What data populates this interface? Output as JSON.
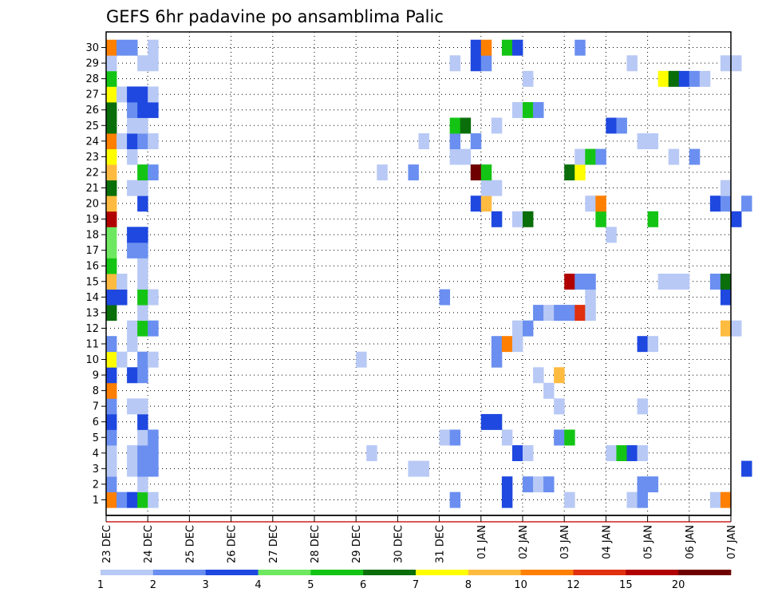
{
  "chart_data": {
    "type": "heatmap",
    "title": "GEFS 6hr padavine po ansamblima Palic",
    "x_tick_labels": [
      "23 DEC",
      "24 DEC",
      "25 DEC",
      "26 DEC",
      "27 DEC",
      "28 DEC",
      "29 DEC",
      "30 DEC",
      "31 DEC",
      "01 JAN",
      "02 JAN",
      "03 JAN",
      "04 JAN",
      "05 JAN",
      "06 JAN",
      "07 JAN"
    ],
    "y_tick_labels": [
      "1",
      "2",
      "3",
      "4",
      "5",
      "6",
      "7",
      "8",
      "9",
      "10",
      "11",
      "12",
      "13",
      "14",
      "15",
      "16",
      "17",
      "18",
      "19",
      "20",
      "21",
      "22",
      "23",
      "24",
      "25",
      "26",
      "27",
      "28",
      "29",
      "30"
    ],
    "xlim": [
      "23 DEC",
      "07 JAN"
    ],
    "ylim": [
      0.5,
      30.5
    ],
    "grid": true,
    "steps_per_day": 4,
    "colorbar": {
      "bounds": [
        "1",
        "2",
        "3",
        "4",
        "5",
        "6",
        "7",
        "8",
        "10",
        "12",
        "15",
        "20"
      ],
      "colors": [
        "#b8c9f5",
        "#6a8ff0",
        "#1f48e0",
        "#6ee860",
        "#14c414",
        "#0a6e0a",
        "#ffff00",
        "#ffbb40",
        "#ff7f00",
        "#e03010",
        "#b00000",
        "#6e0000"
      ]
    },
    "cells": [
      [
        1,
        0,
        "10"
      ],
      [
        1,
        1,
        "2"
      ],
      [
        1,
        2,
        "3"
      ],
      [
        1,
        3,
        "5"
      ],
      [
        1,
        4,
        "1"
      ],
      [
        1,
        33,
        "2"
      ],
      [
        1,
        38,
        "3"
      ],
      [
        1,
        44,
        "1"
      ],
      [
        1,
        50,
        "1"
      ],
      [
        1,
        51,
        "2"
      ],
      [
        1,
        58,
        "1"
      ],
      [
        1,
        59,
        "10"
      ],
      [
        2,
        0,
        "2"
      ],
      [
        2,
        3,
        "1"
      ],
      [
        2,
        38,
        "3"
      ],
      [
        2,
        40,
        "2"
      ],
      [
        2,
        41,
        "1"
      ],
      [
        2,
        42,
        "2"
      ],
      [
        2,
        51,
        "2"
      ],
      [
        2,
        52,
        "2"
      ],
      [
        3,
        0,
        "1"
      ],
      [
        3,
        2,
        "1"
      ],
      [
        3,
        3,
        "2"
      ],
      [
        3,
        4,
        "2"
      ],
      [
        3,
        29,
        "1"
      ],
      [
        3,
        30,
        "1"
      ],
      [
        3,
        61,
        "3"
      ],
      [
        4,
        0,
        "1"
      ],
      [
        4,
        2,
        "1"
      ],
      [
        4,
        3,
        "2"
      ],
      [
        4,
        4,
        "2"
      ],
      [
        4,
        25,
        "1"
      ],
      [
        4,
        39,
        "3"
      ],
      [
        4,
        40,
        "1"
      ],
      [
        4,
        48,
        "1"
      ],
      [
        4,
        49,
        "5"
      ],
      [
        4,
        50,
        "3"
      ],
      [
        4,
        51,
        "1"
      ],
      [
        5,
        0,
        "2"
      ],
      [
        5,
        3,
        "1"
      ],
      [
        5,
        4,
        "2"
      ],
      [
        5,
        32,
        "1"
      ],
      [
        5,
        33,
        "2"
      ],
      [
        5,
        38,
        "1"
      ],
      [
        5,
        43,
        "2"
      ],
      [
        5,
        44,
        "5"
      ],
      [
        6,
        0,
        "3"
      ],
      [
        6,
        3,
        "3"
      ],
      [
        6,
        36,
        "3"
      ],
      [
        6,
        37,
        "3"
      ],
      [
        7,
        0,
        "2"
      ],
      [
        7,
        2,
        "1"
      ],
      [
        7,
        3,
        "1"
      ],
      [
        7,
        43,
        "1"
      ],
      [
        7,
        51,
        "1"
      ],
      [
        8,
        0,
        "10"
      ],
      [
        8,
        42,
        "1"
      ],
      [
        9,
        0,
        "3"
      ],
      [
        9,
        2,
        "3"
      ],
      [
        9,
        3,
        "2"
      ],
      [
        9,
        41,
        "1"
      ],
      [
        9,
        43,
        "8"
      ],
      [
        10,
        0,
        "7"
      ],
      [
        10,
        1,
        "1"
      ],
      [
        10,
        3,
        "2"
      ],
      [
        10,
        4,
        "1"
      ],
      [
        10,
        24,
        "1"
      ],
      [
        10,
        37,
        "2"
      ],
      [
        11,
        0,
        "2"
      ],
      [
        11,
        2,
        "1"
      ],
      [
        11,
        37,
        "2"
      ],
      [
        11,
        38,
        "10"
      ],
      [
        11,
        39,
        "1"
      ],
      [
        11,
        51,
        "3"
      ],
      [
        11,
        52,
        "1"
      ],
      [
        12,
        2,
        "1"
      ],
      [
        12,
        3,
        "5"
      ],
      [
        12,
        4,
        "2"
      ],
      [
        12,
        39,
        "1"
      ],
      [
        12,
        40,
        "2"
      ],
      [
        12,
        59,
        "8"
      ],
      [
        12,
        60,
        "1"
      ],
      [
        13,
        0,
        "6"
      ],
      [
        13,
        3,
        "1"
      ],
      [
        13,
        41,
        "2"
      ],
      [
        13,
        42,
        "1"
      ],
      [
        13,
        43,
        "2"
      ],
      [
        13,
        44,
        "2"
      ],
      [
        13,
        45,
        "12"
      ],
      [
        13,
        46,
        "1"
      ],
      [
        14,
        0,
        "3"
      ],
      [
        14,
        1,
        "3"
      ],
      [
        14,
        3,
        "5"
      ],
      [
        14,
        4,
        "1"
      ],
      [
        14,
        32,
        "2"
      ],
      [
        14,
        46,
        "1"
      ],
      [
        14,
        59,
        "3"
      ],
      [
        15,
        0,
        "8"
      ],
      [
        15,
        1,
        "1"
      ],
      [
        15,
        3,
        "1"
      ],
      [
        15,
        44,
        "15"
      ],
      [
        15,
        45,
        "2"
      ],
      [
        15,
        46,
        "2"
      ],
      [
        15,
        53,
        "1"
      ],
      [
        15,
        54,
        "1"
      ],
      [
        15,
        55,
        "1"
      ],
      [
        15,
        58,
        "2"
      ],
      [
        15,
        59,
        "6"
      ],
      [
        16,
        0,
        "5"
      ],
      [
        16,
        3,
        "1"
      ],
      [
        17,
        0,
        "4"
      ],
      [
        17,
        2,
        "2"
      ],
      [
        17,
        3,
        "2"
      ],
      [
        18,
        0,
        "4"
      ],
      [
        18,
        2,
        "3"
      ],
      [
        18,
        3,
        "3"
      ],
      [
        18,
        48,
        "1"
      ],
      [
        19,
        0,
        "15"
      ],
      [
        19,
        37,
        "3"
      ],
      [
        19,
        39,
        "1"
      ],
      [
        19,
        40,
        "6"
      ],
      [
        19,
        47,
        "5"
      ],
      [
        19,
        52,
        "5"
      ],
      [
        19,
        60,
        "3"
      ],
      [
        20,
        0,
        "8"
      ],
      [
        20,
        3,
        "3"
      ],
      [
        20,
        35,
        "3"
      ],
      [
        20,
        36,
        "8"
      ],
      [
        20,
        46,
        "1"
      ],
      [
        20,
        47,
        "10"
      ],
      [
        20,
        58,
        "3"
      ],
      [
        20,
        59,
        "2"
      ],
      [
        20,
        61,
        "2"
      ],
      [
        21,
        0,
        "6"
      ],
      [
        21,
        2,
        "1"
      ],
      [
        21,
        3,
        "1"
      ],
      [
        21,
        36,
        "1"
      ],
      [
        21,
        37,
        "1"
      ],
      [
        21,
        59,
        "1"
      ],
      [
        22,
        0,
        "8"
      ],
      [
        22,
        3,
        "5"
      ],
      [
        22,
        4,
        "2"
      ],
      [
        22,
        26,
        "1"
      ],
      [
        22,
        29,
        "2"
      ],
      [
        22,
        35,
        "20"
      ],
      [
        22,
        36,
        "5"
      ],
      [
        22,
        44,
        "6"
      ],
      [
        22,
        45,
        "7"
      ],
      [
        23,
        0,
        "7"
      ],
      [
        23,
        2,
        "1"
      ],
      [
        23,
        33,
        "1"
      ],
      [
        23,
        34,
        "1"
      ],
      [
        23,
        45,
        "1"
      ],
      [
        23,
        46,
        "5"
      ],
      [
        23,
        47,
        "2"
      ],
      [
        23,
        54,
        "1"
      ],
      [
        23,
        56,
        "2"
      ],
      [
        24,
        0,
        "10"
      ],
      [
        24,
        1,
        "1"
      ],
      [
        24,
        2,
        "3"
      ],
      [
        24,
        3,
        "2"
      ],
      [
        24,
        4,
        "1"
      ],
      [
        24,
        30,
        "1"
      ],
      [
        24,
        33,
        "2"
      ],
      [
        24,
        35,
        "2"
      ],
      [
        24,
        51,
        "1"
      ],
      [
        24,
        52,
        "1"
      ],
      [
        25,
        0,
        "6"
      ],
      [
        25,
        2,
        "1"
      ],
      [
        25,
        3,
        "1"
      ],
      [
        25,
        33,
        "5"
      ],
      [
        25,
        34,
        "6"
      ],
      [
        25,
        37,
        "1"
      ],
      [
        25,
        48,
        "3"
      ],
      [
        25,
        49,
        "2"
      ],
      [
        26,
        0,
        "6"
      ],
      [
        26,
        2,
        "2"
      ],
      [
        26,
        3,
        "3"
      ],
      [
        26,
        4,
        "3"
      ],
      [
        26,
        39,
        "1"
      ],
      [
        26,
        40,
        "5"
      ],
      [
        26,
        41,
        "2"
      ],
      [
        27,
        0,
        "7"
      ],
      [
        27,
        1,
        "1"
      ],
      [
        27,
        2,
        "3"
      ],
      [
        27,
        3,
        "3"
      ],
      [
        27,
        4,
        "1"
      ],
      [
        28,
        0,
        "5"
      ],
      [
        28,
        40,
        "1"
      ],
      [
        28,
        53,
        "7"
      ],
      [
        28,
        54,
        "6"
      ],
      [
        28,
        55,
        "3"
      ],
      [
        28,
        56,
        "2"
      ],
      [
        28,
        57,
        "1"
      ],
      [
        29,
        0,
        "1"
      ],
      [
        29,
        3,
        "1"
      ],
      [
        29,
        4,
        "1"
      ],
      [
        29,
        33,
        "1"
      ],
      [
        29,
        35,
        "3"
      ],
      [
        29,
        36,
        "2"
      ],
      [
        29,
        50,
        "1"
      ],
      [
        29,
        59,
        "1"
      ],
      [
        29,
        60,
        "1"
      ],
      [
        30,
        0,
        "10"
      ],
      [
        30,
        1,
        "2"
      ],
      [
        30,
        2,
        "2"
      ],
      [
        30,
        4,
        "1"
      ],
      [
        30,
        35,
        "3"
      ],
      [
        30,
        36,
        "10"
      ],
      [
        30,
        38,
        "5"
      ],
      [
        30,
        39,
        "3"
      ],
      [
        30,
        45,
        "2"
      ]
    ]
  }
}
